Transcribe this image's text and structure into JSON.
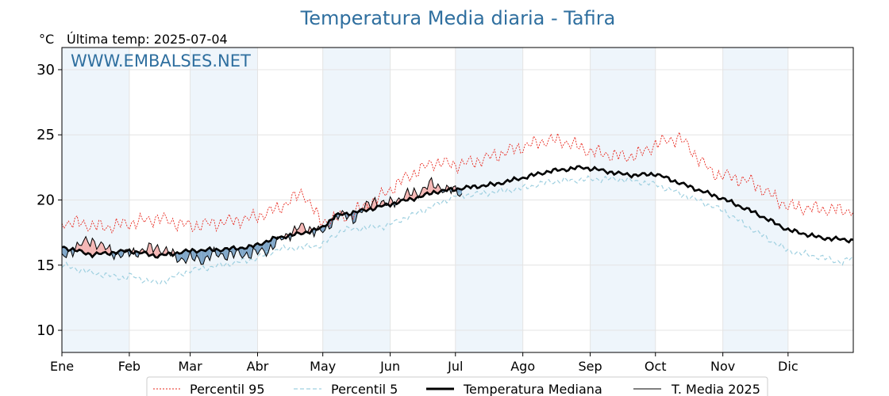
{
  "chart_data": {
    "type": "line",
    "title": "Temperatura Media diaria - Tafira",
    "unit_label": "°C",
    "last_temp_label": "Última temp: 2025-07-04",
    "watermark": "WWW.EMBALSES.NET",
    "ylim": [
      8.3,
      31.7
    ],
    "yticks": [
      10,
      15,
      20,
      25,
      30
    ],
    "months": [
      "Ene",
      "Feb",
      "Mar",
      "Abr",
      "May",
      "Jun",
      "Jul",
      "Ago",
      "Sep",
      "Oct",
      "Nov",
      "Dic"
    ],
    "grid": true,
    "legend_position": "bottom",
    "colors": {
      "p95": "#e8281e",
      "p5": "#9fd0e0",
      "median": "#000000",
      "media2025": "#000000",
      "above_fill": "#f4b6b4",
      "below_fill": "#7fa6c8",
      "band": "#eef5fb",
      "title": "#2f6f9f"
    },
    "series": [
      {
        "name": "Percentil 95",
        "style": "dotted-red",
        "anchors_x": [
          1,
          10,
          20,
          32,
          45,
          60,
          75,
          88,
          100,
          112,
          120,
          133,
          147,
          160,
          172,
          182,
          190,
          200,
          213,
          225,
          232,
          245,
          260,
          268,
          274,
          285,
          300,
          318,
          335,
          350,
          365
        ],
        "anchors_y": [
          18.3,
          18.2,
          17.9,
          18.2,
          18.6,
          18.0,
          18.3,
          18.6,
          19.3,
          20.6,
          18.3,
          18.8,
          20.2,
          21.8,
          22.9,
          22.7,
          22.9,
          23.4,
          24.1,
          24.6,
          24.5,
          23.7,
          23.3,
          23.6,
          24.3,
          24.8,
          22.1,
          21.4,
          19.5,
          19.3,
          19.2
        ],
        "jitter": 0.7
      },
      {
        "name": "Percentil 5",
        "style": "dashed-lightblue",
        "anchors_x": [
          1,
          15,
          30,
          32,
          45,
          60,
          75,
          90,
          100,
          120,
          130,
          150,
          170,
          182,
          200,
          213,
          225,
          245,
          258,
          274,
          290,
          305,
          320,
          335,
          350,
          360,
          365
        ],
        "anchors_y": [
          15.0,
          14.4,
          14.0,
          14.2,
          13.6,
          14.6,
          15.0,
          15.5,
          16.2,
          16.5,
          17.7,
          18.0,
          19.4,
          20.3,
          20.6,
          20.9,
          21.4,
          21.6,
          21.6,
          21.2,
          20.2,
          19.2,
          17.6,
          16.1,
          15.6,
          15.2,
          15.6
        ],
        "jitter": 0.3
      },
      {
        "name": "Temperatura Mediana",
        "style": "solid-thick",
        "anchors_x": [
          1,
          15,
          32,
          45,
          60,
          75,
          88,
          100,
          110,
          120,
          127,
          140,
          155,
          167,
          172,
          185,
          200,
          213,
          225,
          240,
          245,
          258,
          265,
          274,
          290,
          305,
          320,
          335,
          350,
          365
        ],
        "anchors_y": [
          16.4,
          15.8,
          16.1,
          15.7,
          16.1,
          16.2,
          16.4,
          17.1,
          17.4,
          17.8,
          18.8,
          19.2,
          19.8,
          20.3,
          20.6,
          20.9,
          21.2,
          21.7,
          22.2,
          22.5,
          22.4,
          22.0,
          21.9,
          22.0,
          21.0,
          20.1,
          19.0,
          17.7,
          17.1,
          16.9
        ],
        "jitter": 0.2
      },
      {
        "name": "T. Media 2025",
        "style": "solid-thin",
        "anchors_x": [
          1,
          8,
          15,
          25,
          30,
          45,
          55,
          60,
          66,
          70,
          80,
          90,
          96,
          102,
          110,
          118,
          122,
          127,
          135,
          145,
          150,
          160,
          165,
          170,
          175,
          183,
          185
        ],
        "anchors_y": [
          15.5,
          16.5,
          16.9,
          15.9,
          15.8,
          16.4,
          15.5,
          15.5,
          15.4,
          15.8,
          15.8,
          15.9,
          16.2,
          17.0,
          17.9,
          17.7,
          17.5,
          18.9,
          18.6,
          20.0,
          19.6,
          20.4,
          20.6,
          21.2,
          21.0,
          20.6,
          20.5
        ],
        "jitter": 0.6,
        "x_start": 1,
        "x_end": 185
      }
    ]
  }
}
